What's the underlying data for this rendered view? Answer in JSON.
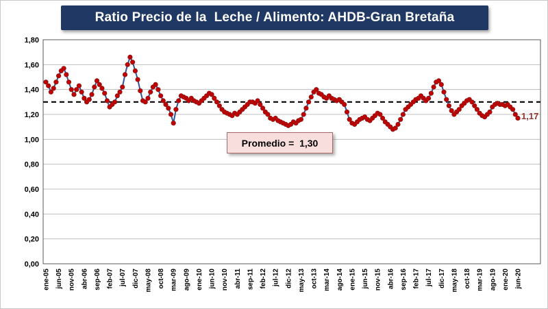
{
  "chart_data": {
    "type": "line",
    "title": "Ratio Precio de la  Leche / Alimento: AHDB-Gran Bretaña",
    "xlabel": "",
    "ylabel": "",
    "ylim": [
      0,
      1.8
    ],
    "y_tick_step": 0.2,
    "y_tick_labels": [
      "0,00",
      "0,20",
      "0,40",
      "0,60",
      "0,80",
      "1,00",
      "1,20",
      "1,40",
      "1,60",
      "1,80"
    ],
    "grid": true,
    "n_points": 186,
    "points_per_label": 5,
    "x_tick_labels": [
      "ene-05",
      "jun-05",
      "nov-05",
      "abr-06",
      "sep-06",
      "feb-07",
      "jul-07",
      "dic-07",
      "may-08",
      "oct-08",
      "mar-09",
      "ago-09",
      "ene-10",
      "jun-10",
      "nov-10",
      "abr-11",
      "sep-11",
      "feb-12",
      "jul-12",
      "dic-12",
      "may-13",
      "oct-13",
      "mar-14",
      "ago-14",
      "ene-15",
      "jun-15",
      "nov-15",
      "abr-16",
      "sep-16",
      "feb-17",
      "jul-17",
      "dic-17",
      "may-18",
      "oct-18",
      "mar-19",
      "ago-19",
      "ene-20",
      "jun-20"
    ],
    "values": [
      1.46,
      1.43,
      1.38,
      1.41,
      1.46,
      1.51,
      1.55,
      1.57,
      1.52,
      1.46,
      1.4,
      1.36,
      1.4,
      1.43,
      1.38,
      1.33,
      1.3,
      1.32,
      1.36,
      1.42,
      1.47,
      1.44,
      1.41,
      1.37,
      1.31,
      1.26,
      1.28,
      1.3,
      1.35,
      1.38,
      1.42,
      1.52,
      1.6,
      1.66,
      1.62,
      1.55,
      1.48,
      1.39,
      1.31,
      1.3,
      1.33,
      1.38,
      1.42,
      1.44,
      1.4,
      1.35,
      1.31,
      1.28,
      1.25,
      1.2,
      1.13,
      1.24,
      1.31,
      1.35,
      1.34,
      1.33,
      1.31,
      1.33,
      1.31,
      1.3,
      1.29,
      1.31,
      1.33,
      1.35,
      1.37,
      1.36,
      1.33,
      1.3,
      1.27,
      1.24,
      1.22,
      1.21,
      1.2,
      1.19,
      1.21,
      1.2,
      1.22,
      1.24,
      1.26,
      1.28,
      1.3,
      1.3,
      1.29,
      1.31,
      1.28,
      1.25,
      1.22,
      1.2,
      1.17,
      1.16,
      1.17,
      1.15,
      1.14,
      1.13,
      1.12,
      1.11,
      1.12,
      1.14,
      1.13,
      1.15,
      1.16,
      1.2,
      1.25,
      1.3,
      1.34,
      1.38,
      1.4,
      1.37,
      1.36,
      1.34,
      1.33,
      1.35,
      1.33,
      1.32,
      1.31,
      1.32,
      1.3,
      1.28,
      1.22,
      1.16,
      1.13,
      1.12,
      1.14,
      1.16,
      1.17,
      1.18,
      1.16,
      1.15,
      1.17,
      1.19,
      1.21,
      1.2,
      1.17,
      1.14,
      1.12,
      1.1,
      1.08,
      1.09,
      1.12,
      1.16,
      1.2,
      1.24,
      1.26,
      1.28,
      1.3,
      1.32,
      1.33,
      1.35,
      1.33,
      1.31,
      1.33,
      1.37,
      1.42,
      1.46,
      1.47,
      1.44,
      1.38,
      1.32,
      1.27,
      1.23,
      1.2,
      1.22,
      1.24,
      1.27,
      1.29,
      1.31,
      1.32,
      1.3,
      1.27,
      1.24,
      1.21,
      1.19,
      1.18,
      1.2,
      1.22,
      1.26,
      1.28,
      1.29,
      1.28,
      1.28,
      1.27,
      1.28,
      1.26,
      1.24,
      1.2,
      1.17
    ],
    "average_line": {
      "value": 1.3,
      "label": "Promedio =  1,30"
    },
    "last_value_label": "1,17",
    "colors": {
      "line": "#2E5597",
      "marker": "#C00000",
      "marker_edge": "#8F1B1B",
      "title_bg": "#1F3864",
      "title_text": "#FFFFFF",
      "grid": "#BFBFBF",
      "plot_border": "#595959",
      "average_line": "#000000",
      "annotation_bg": "#F8DEDC",
      "last_label_text": "#953735"
    },
    "legend": "none"
  }
}
